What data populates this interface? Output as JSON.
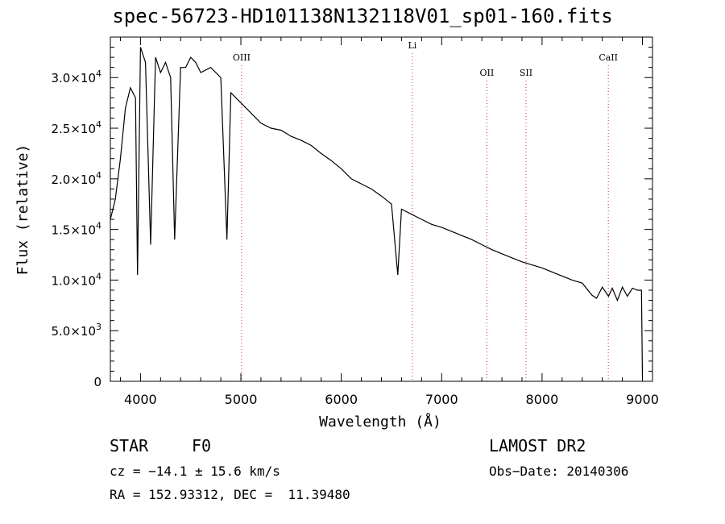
{
  "chart_data": {
    "type": "line",
    "title": "spec-56723-HD101138N132118V01_sp01-160.fits",
    "xlabel": "Wavelength (Å)",
    "ylabel": "Flux (relative)",
    "xlim": [
      3700,
      9100
    ],
    "ylim": [
      0,
      34000
    ],
    "x_ticks": [
      4000,
      5000,
      6000,
      7000,
      8000,
      9000
    ],
    "x_tick_labels": [
      "4000",
      "5000",
      "6000",
      "7000",
      "8000",
      "9000"
    ],
    "y_ticks": [
      0,
      5000,
      10000,
      15000,
      20000,
      25000,
      30000
    ],
    "y_tick_labels": [
      {
        "mant": "0",
        "exp": ""
      },
      {
        "mant": "5.0×10",
        "exp": "3"
      },
      {
        "mant": "1.0×10",
        "exp": "4"
      },
      {
        "mant": "1.5×10",
        "exp": "4"
      },
      {
        "mant": "2.0×10",
        "exp": "4"
      },
      {
        "mant": "2.5×10",
        "exp": "4"
      },
      {
        "mant": "3.0×10",
        "exp": "4"
      }
    ],
    "grid": false,
    "legend": "none",
    "spectral_lines": [
      {
        "label": "OIII",
        "x": 5007
      },
      {
        "label": "Li",
        "x": 6708
      },
      {
        "label": "OII",
        "x": 7450
      },
      {
        "label": "SII",
        "x": 7840
      },
      {
        "label": "CaII",
        "x": 8660
      }
    ],
    "series": [
      {
        "x": [
          3700,
          3750,
          3800,
          3850,
          3900,
          3950,
          3970,
          4000,
          4050,
          4101,
          4150,
          4200,
          4250,
          4300,
          4340,
          4400,
          4450,
          4500,
          4550,
          4600,
          4700,
          4800,
          4861,
          4900,
          5000,
          5100,
          5200,
          5300,
          5400,
          5500,
          5600,
          5700,
          5800,
          5900,
          6000,
          6100,
          6200,
          6300,
          6400,
          6500,
          6563,
          6600,
          6700,
          6800,
          6900,
          7000,
          7100,
          7200,
          7300,
          7400,
          7500,
          7600,
          7700,
          7800,
          7900,
          8000,
          8100,
          8200,
          8300,
          8400,
          8498,
          8542,
          8600,
          8662,
          8700,
          8750,
          8800,
          8850,
          8900,
          8950,
          8990,
          9000
        ],
        "y": [
          16000,
          18000,
          22000,
          27000,
          29000,
          28000,
          10500,
          33000,
          31500,
          13500,
          32000,
          30500,
          31500,
          30000,
          14000,
          31000,
          31000,
          32000,
          31500,
          30500,
          31000,
          30000,
          14000,
          28500,
          27500,
          26500,
          25500,
          25000,
          24800,
          24200,
          23800,
          23300,
          22500,
          21800,
          21000,
          20000,
          19500,
          19000,
          18300,
          17500,
          10500,
          17000,
          16500,
          16000,
          15500,
          15200,
          14800,
          14400,
          14000,
          13500,
          13000,
          12600,
          12200,
          11800,
          11500,
          11200,
          10800,
          10400,
          10000,
          9700,
          8500,
          8200,
          9300,
          8400,
          9200,
          8000,
          9300,
          8400,
          9200,
          9000,
          9000,
          500
        ]
      }
    ]
  },
  "info": {
    "object_class": "STAR",
    "subclass": "F0",
    "survey": "LAMOST DR2",
    "cz": "cz = −14.1 ± 15.6 km/s",
    "obs_date": "Obs−Date: 20140306",
    "coords": "RA = 152.93312, DEC =  11.39480"
  }
}
